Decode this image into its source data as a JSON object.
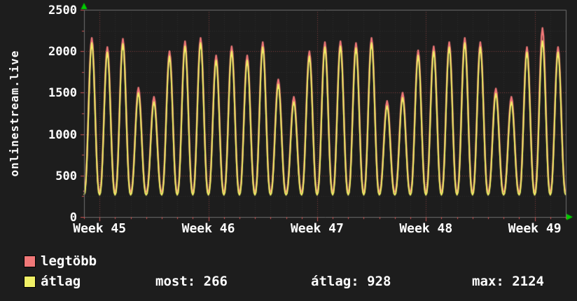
{
  "page": {
    "bg": "#1d1d1d"
  },
  "y_axis_title": "onlinestream.live",
  "chart_data": {
    "type": "line",
    "title": "",
    "ylabel": "onlinestream.live",
    "xlabel": "",
    "ylim": [
      0,
      2500
    ],
    "y_ticks": [
      0,
      500,
      1000,
      1500,
      2000,
      2500
    ],
    "x_tick_labels": [
      "Week 45",
      "Week 46",
      "Week 47",
      "Week 48",
      "Week 49"
    ],
    "days_total": 31,
    "week_tick_days": [
      1,
      8,
      15,
      22,
      29
    ],
    "grid": {
      "on": true,
      "major_color": "#d15f5f",
      "minor_color": "#2c2c2c"
    },
    "axis_arrow_color": "#00cc00",
    "border_color": "#707070",
    "tick_color": "#cc5555",
    "legend_position": "bottom",
    "series": [
      {
        "name": "legtöbb",
        "color": "#f07878",
        "trough": 300,
        "day_peaks": [
          2160,
          2050,
          2150,
          1560,
          1450,
          2000,
          2120,
          2160,
          1950,
          2060,
          1950,
          2110,
          1660,
          1450,
          2000,
          2110,
          2120,
          2100,
          2160,
          1400,
          1500,
          2010,
          2060,
          2110,
          2160,
          2110,
          1550,
          1450,
          2050,
          2280,
          2050
        ]
      },
      {
        "name": "átlag",
        "color": "#f0f066",
        "trough": 266,
        "day_peaks": [
          2100,
          1990,
          2090,
          1500,
          1390,
          1940,
          2060,
          2100,
          1890,
          2000,
          1890,
          2050,
          1600,
          1390,
          1940,
          2050,
          2060,
          2040,
          2100,
          1340,
          1440,
          1950,
          2000,
          2050,
          2100,
          2050,
          1490,
          1390,
          1990,
          2124,
          1990
        ]
      }
    ]
  },
  "legend": {
    "items": [
      {
        "label": "legtöbb",
        "color": "#f07878"
      },
      {
        "label": "átlag",
        "color": "#f0f066"
      }
    ],
    "stats": [
      {
        "label": "most:",
        "value": "266"
      },
      {
        "label": "átlag:",
        "value": "928"
      },
      {
        "label": "max:",
        "value": "2124"
      }
    ]
  }
}
